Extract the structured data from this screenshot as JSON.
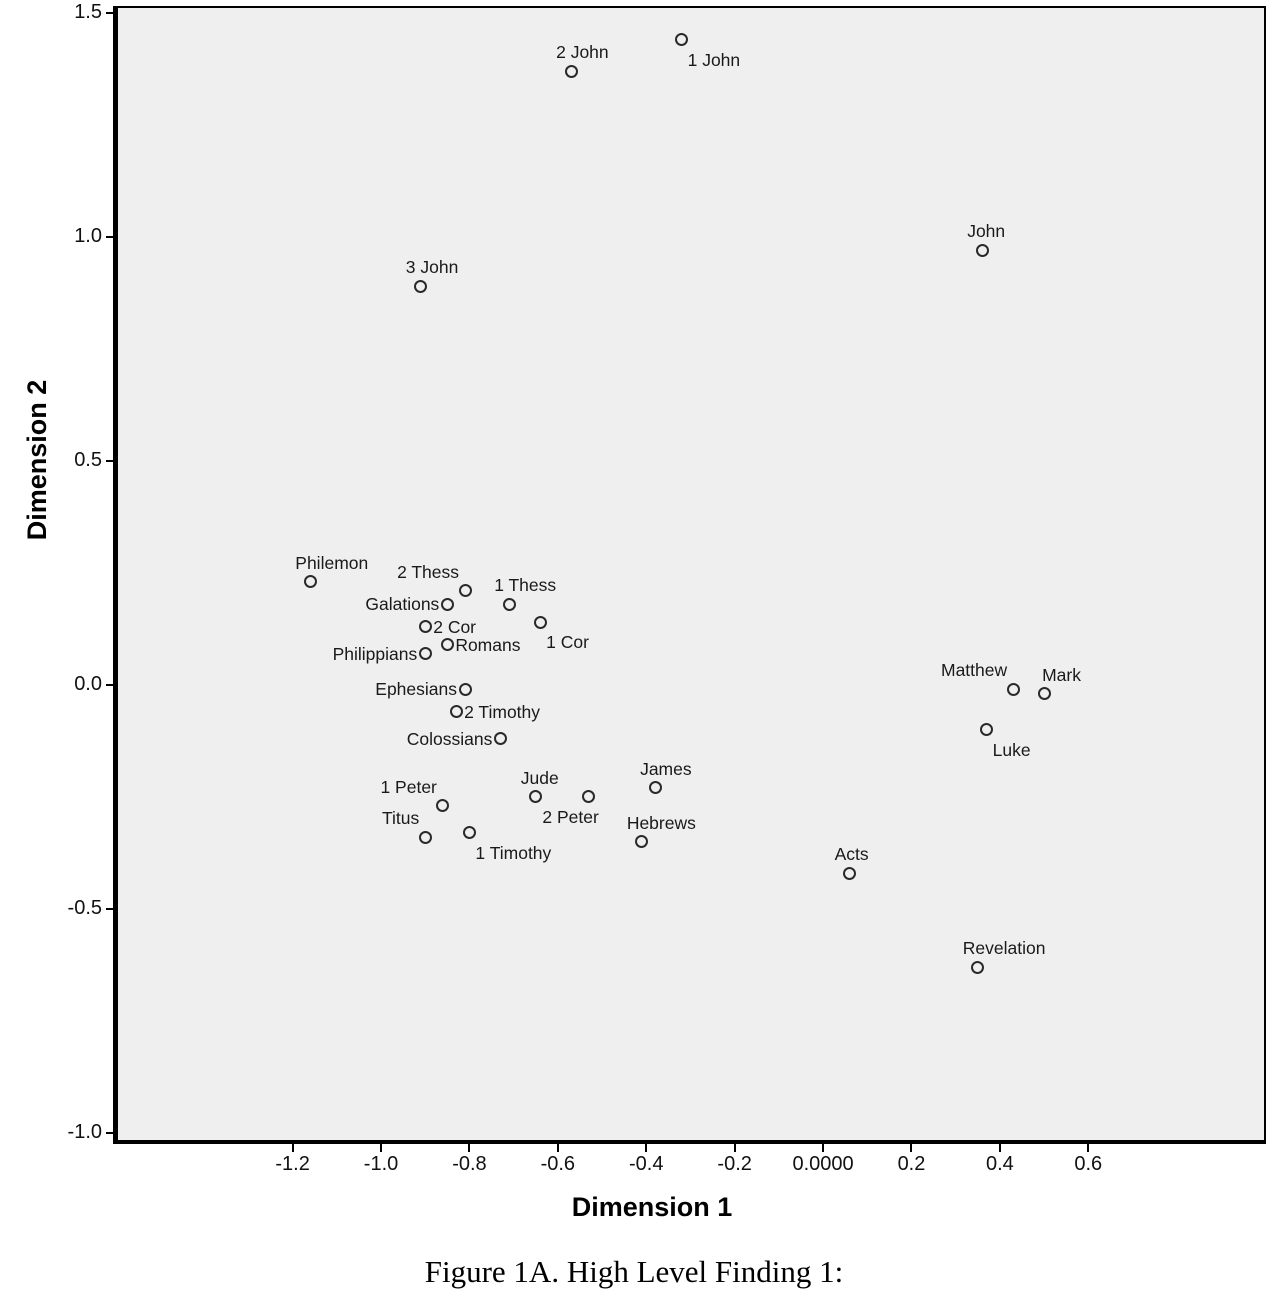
{
  "figure": {
    "caption": "Figure 1A. High Level Finding 1:"
  },
  "chart_data": {
    "type": "scatter",
    "title": "",
    "xlabel": "Dimension 1",
    "ylabel": "Dimension 2",
    "grid": false,
    "legend": "none",
    "xlim": [
      -1.595,
      1.002
    ],
    "ylim": [
      -1.016,
      1.511
    ],
    "x_ticks": {
      "values": [
        -1.2,
        -1.0,
        -0.8,
        -0.6,
        -0.4,
        -0.2,
        0.0,
        0.2,
        0.4,
        0.6
      ],
      "labels": [
        "-1.2",
        "-1.0",
        "-0.8",
        "-0.6",
        "-0.4",
        "-0.2",
        "0.0000",
        "0.2",
        "0.4",
        "0.6"
      ]
    },
    "y_ticks": {
      "values": [
        1.5,
        1.0,
        0.5,
        0.0,
        -0.5,
        -1.0
      ],
      "labels": [
        "1.5",
        "1.0",
        "0.5",
        "0.0",
        "-0.5",
        "-1.0"
      ]
    },
    "colors": {
      "plot_bg": "#efefef",
      "marker_stroke": "#2a2a2a",
      "text": "#1a1a1a",
      "axis": "#000000"
    },
    "marker": "open-circle",
    "points": [
      {
        "label": "2 John",
        "x": -0.57,
        "y": 1.37,
        "label_pos": "above"
      },
      {
        "label": "1 John",
        "x": -0.32,
        "y": 1.44,
        "label_pos": "below-right"
      },
      {
        "label": "John",
        "x": 0.36,
        "y": 0.97,
        "label_pos": "above"
      },
      {
        "label": "3 John",
        "x": -0.91,
        "y": 0.89,
        "label_pos": "above"
      },
      {
        "label": "Philemon",
        "x": -1.16,
        "y": 0.23,
        "label_pos": "above"
      },
      {
        "label": "2 Thess",
        "x": -0.81,
        "y": 0.21,
        "label_pos": "above-left"
      },
      {
        "label": "Galations",
        "x": -0.85,
        "y": 0.18,
        "label_pos": "left"
      },
      {
        "label": "1 Thess",
        "x": -0.71,
        "y": 0.18,
        "label_pos": "above"
      },
      {
        "label": "2 Cor",
        "x": -0.9,
        "y": 0.13,
        "label_pos": "right"
      },
      {
        "label": "Romans",
        "x": -0.85,
        "y": 0.09,
        "label_pos": "right"
      },
      {
        "label": "Philippians",
        "x": -0.9,
        "y": 0.07,
        "label_pos": "left"
      },
      {
        "label": "1 Cor",
        "x": -0.64,
        "y": 0.14,
        "label_pos": "below-right"
      },
      {
        "label": "Ephesians",
        "x": -0.81,
        "y": -0.01,
        "label_pos": "left"
      },
      {
        "label": "2 Timothy",
        "x": -0.83,
        "y": -0.06,
        "label_pos": "right"
      },
      {
        "label": "Colossians",
        "x": -0.73,
        "y": -0.12,
        "label_pos": "left"
      },
      {
        "label": "Jude",
        "x": -0.65,
        "y": -0.25,
        "label_pos": "above"
      },
      {
        "label": "2 Peter",
        "x": -0.53,
        "y": -0.25,
        "label_pos": "below-left"
      },
      {
        "label": "James",
        "x": -0.38,
        "y": -0.23,
        "label_pos": "above"
      },
      {
        "label": "Hebrews",
        "x": -0.41,
        "y": -0.35,
        "label_pos": "above"
      },
      {
        "label": "1 Peter",
        "x": -0.86,
        "y": -0.27,
        "label_pos": "above-left"
      },
      {
        "label": "Titus",
        "x": -0.9,
        "y": -0.34,
        "label_pos": "above-left"
      },
      {
        "label": "1 Timothy",
        "x": -0.8,
        "y": -0.33,
        "label_pos": "below-right"
      },
      {
        "label": "Acts",
        "x": 0.06,
        "y": -0.42,
        "label_pos": "above"
      },
      {
        "label": "Revelation",
        "x": 0.35,
        "y": -0.63,
        "label_pos": "above"
      },
      {
        "label": "Matthew",
        "x": 0.43,
        "y": -0.01,
        "label_pos": "above-left"
      },
      {
        "label": "Mark",
        "x": 0.5,
        "y": -0.02,
        "label_pos": "above-right"
      },
      {
        "label": "Luke",
        "x": 0.37,
        "y": -0.1,
        "label_pos": "below-right"
      }
    ]
  }
}
